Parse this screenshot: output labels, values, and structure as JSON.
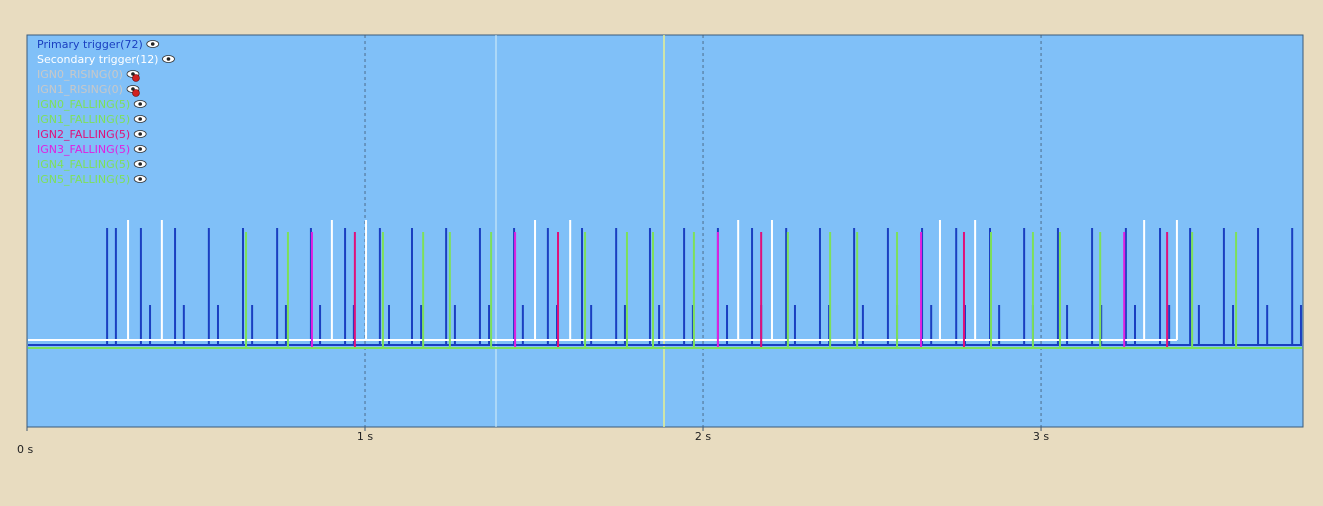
{
  "chart_data": {
    "type": "events",
    "xlim": [
      0,
      3.775
    ],
    "xticks": [
      {
        "value": 0,
        "label": "0 s"
      },
      {
        "value": 1,
        "label": "1 s"
      },
      {
        "value": 2,
        "label": "2 s"
      },
      {
        "value": 3,
        "label": "3 s"
      }
    ],
    "grid": true,
    "series": [
      {
        "name": "Primary trigger(72)",
        "color": "#1a3fc0",
        "x": [
          0.237,
          0.263,
          0.337,
          0.364,
          0.438,
          0.464,
          0.538,
          0.565,
          0.639,
          0.666,
          0.74,
          0.766,
          0.84,
          0.867,
          0.941,
          0.967,
          1.044,
          1.071,
          1.139,
          1.166,
          1.24,
          1.266,
          1.34,
          1.367,
          1.441,
          1.467,
          1.541,
          1.568,
          1.642,
          1.669,
          1.743,
          1.769,
          1.843,
          1.87,
          1.944,
          1.97,
          2.044,
          2.071,
          2.145,
          2.172,
          2.246,
          2.272,
          2.346,
          2.373,
          2.447,
          2.473,
          2.547,
          2.574,
          2.648,
          2.675,
          2.749,
          2.775,
          2.849,
          2.876,
          2.95,
          2.976,
          3.05,
          3.077,
          3.151,
          3.178,
          3.251,
          3.278,
          3.352,
          3.379,
          3.441,
          3.467,
          3.541,
          3.568,
          3.642,
          3.669,
          3.743,
          3.769
        ]
      },
      {
        "name": "Secondary trigger(12)",
        "color": "#ffffff",
        "x": [
          0.299,
          0.399,
          0.902,
          1.003,
          1.503,
          1.607,
          2.104,
          2.204,
          2.701,
          2.805,
          3.305,
          3.402
        ]
      },
      {
        "name": "IGN0_RISING(0)",
        "color": "#c8c8c8",
        "x": []
      },
      {
        "name": "IGN1_RISING(0)",
        "color": "#c8c8c8",
        "x": []
      },
      {
        "name": "IGN0_FALLING(5)",
        "color": "#7de05a",
        "x": [
          0.648,
          1.251,
          1.852,
          2.456,
          3.056
        ]
      },
      {
        "name": "IGN1_FALLING(5)",
        "color": "#7de05a",
        "x": [
          0.772,
          1.373,
          1.973,
          2.574,
          3.175
        ]
      },
      {
        "name": "IGN2_FALLING(5)",
        "color": "#e0107a",
        "x": [
          0.97,
          1.571,
          2.172,
          2.772,
          3.373
        ]
      },
      {
        "name": "IGN3_FALLING(5)",
        "color": "#e020e0",
        "x": [
          0.843,
          1.444,
          2.044,
          2.645,
          3.246
        ]
      },
      {
        "name": "IGN4_FALLING(5)",
        "color": "#7de05a",
        "x": [
          1.053,
          1.651,
          2.251,
          2.852,
          3.447
        ]
      },
      {
        "name": "IGN5_FALLING(5)",
        "color": "#7de05a",
        "x": [
          1.172,
          1.775,
          2.376,
          2.976,
          3.577
        ]
      }
    ]
  }
}
